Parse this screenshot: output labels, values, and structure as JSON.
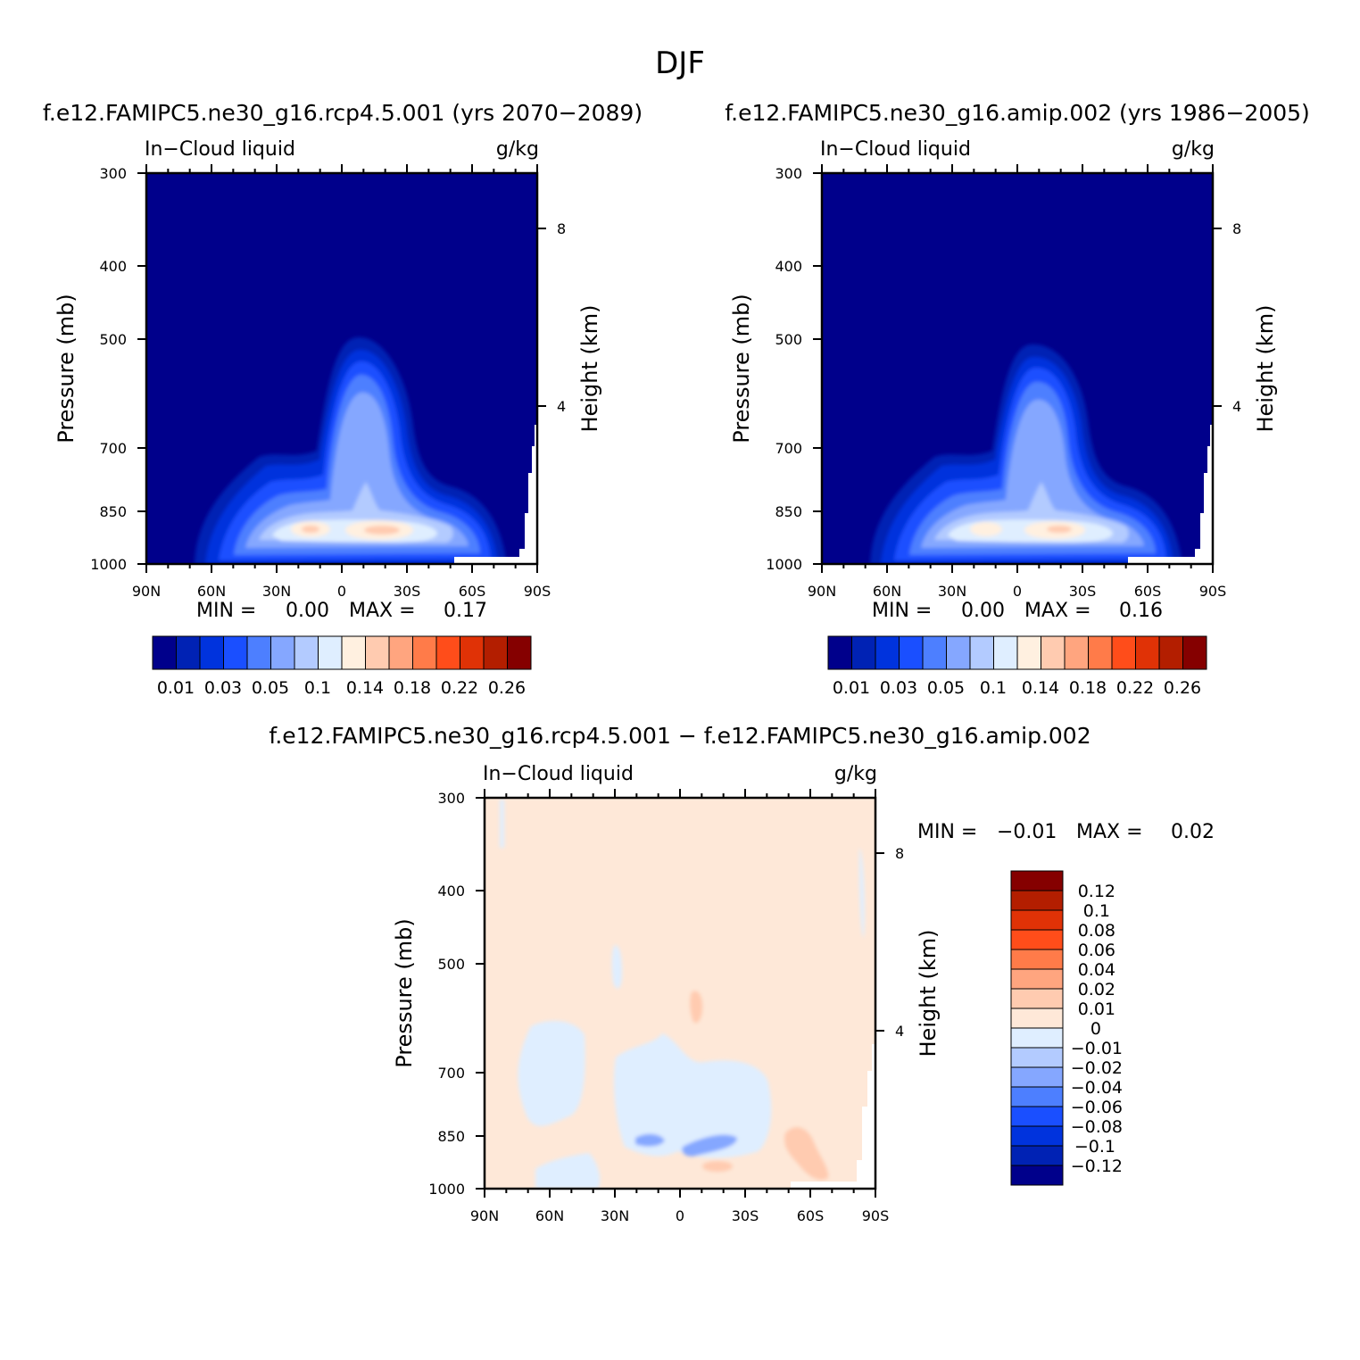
{
  "figure": {
    "title": "DJF",
    "diff_title": "f.e12.FAMIPC5.ne30_g16.rcp4.5.001 - f.e12.FAMIPC5.ne30_g16.amip.002"
  },
  "colors": {
    "abs_scale": [
      "#00008b",
      "#0022b4",
      "#0033dd",
      "#1a4fff",
      "#4d7fff",
      "#85a7ff",
      "#b3cbff",
      "#dfeeff",
      "#fff0e0",
      "#ffcbb0",
      "#ffa57f",
      "#ff7b49",
      "#ff4d1a",
      "#e03206",
      "#b31e00",
      "#850000"
    ],
    "diff_scale": [
      "#00008b",
      "#0022b4",
      "#0033dd",
      "#1a4fff",
      "#4d7fff",
      "#85a7ff",
      "#b3cbff",
      "#dfeeff",
      "#fee8d8",
      "#ffcbb0",
      "#ffa57f",
      "#ff7b49",
      "#ff4d1a",
      "#e03206",
      "#b31e00",
      "#850000"
    ]
  },
  "chart_data": [
    {
      "type": "contour",
      "title": "f.e12.FAMIPC5.ne30_g16.rcp4.5.001 (yrs 2070-2089)",
      "left_label": "In-Cloud liquid",
      "right_label": "g/kg",
      "ylabel": "Pressure (mb)",
      "y2label": "Height (km)",
      "x_ticks": [
        "90N",
        "60N",
        "30N",
        "0",
        "30S",
        "60S",
        "90S"
      ],
      "y_ticks": [
        "300",
        "400",
        "500",
        "700",
        "850",
        "1000"
      ],
      "y2_ticks": [
        "8",
        "4"
      ],
      "xlim": [
        "90N",
        "90S"
      ],
      "ylim": [
        1000,
        300
      ],
      "min_label": "MIN =",
      "min_value": "0.00",
      "max_label": "MAX =",
      "max_value": "0.17",
      "colorbar_labels": [
        "0.01",
        "0.03",
        "0.05",
        "0.1",
        "0.14",
        "0.18",
        "0.22",
        "0.26"
      ],
      "colorbar_orientation": "horizontal"
    },
    {
      "type": "contour",
      "title": "f.e12.FAMIPC5.ne30_g16.amip.002 (yrs 1986-2005)",
      "left_label": "In-Cloud liquid",
      "right_label": "g/kg",
      "ylabel": "Pressure (mb)",
      "y2label": "Height (km)",
      "x_ticks": [
        "90N",
        "60N",
        "30N",
        "0",
        "30S",
        "60S",
        "90S"
      ],
      "y_ticks": [
        "300",
        "400",
        "500",
        "700",
        "850",
        "1000"
      ],
      "y2_ticks": [
        "8",
        "4"
      ],
      "xlim": [
        "90N",
        "90S"
      ],
      "ylim": [
        1000,
        300
      ],
      "min_label": "MIN =",
      "min_value": "0.00",
      "max_label": "MAX =",
      "max_value": "0.16",
      "colorbar_labels": [
        "0.01",
        "0.03",
        "0.05",
        "0.1",
        "0.14",
        "0.18",
        "0.22",
        "0.26"
      ],
      "colorbar_orientation": "horizontal"
    },
    {
      "type": "contour",
      "title": "f.e12.FAMIPC5.ne30_g16.rcp4.5.001 - f.e12.FAMIPC5.ne30_g16.amip.002",
      "left_label": "In-Cloud liquid",
      "right_label": "g/kg",
      "ylabel": "Pressure (mb)",
      "y2label": "Height (km)",
      "x_ticks": [
        "90N",
        "60N",
        "30N",
        "0",
        "30S",
        "60S",
        "90S"
      ],
      "y_ticks": [
        "300",
        "400",
        "500",
        "700",
        "850",
        "1000"
      ],
      "y2_ticks": [
        "8",
        "4"
      ],
      "xlim": [
        "90N",
        "90S"
      ],
      "ylim": [
        1000,
        300
      ],
      "min_label": "MIN =",
      "min_value": "-0.01",
      "max_label": "MAX =",
      "max_value": "0.02",
      "colorbar_labels": [
        "0.12",
        "0.1",
        "0.08",
        "0.06",
        "0.04",
        "0.02",
        "0.01",
        "0",
        "-0.01",
        "-0.02",
        "-0.04",
        "-0.06",
        "-0.08",
        "-0.1",
        "-0.12"
      ],
      "colorbar_orientation": "vertical"
    }
  ]
}
